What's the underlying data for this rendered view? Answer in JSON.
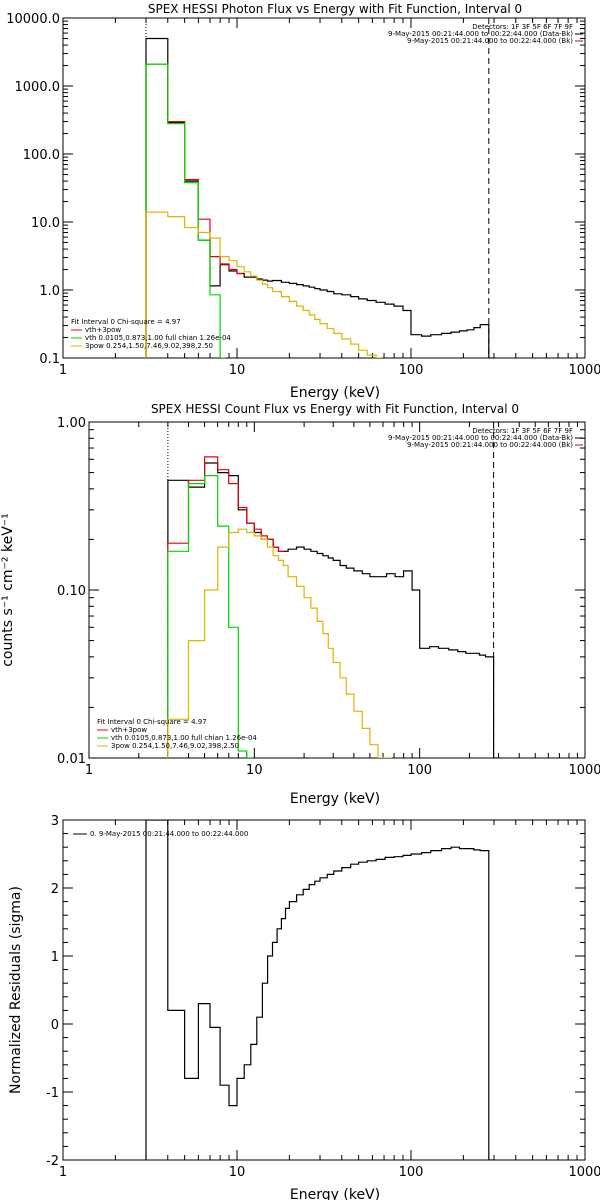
{
  "colors": {
    "data": "#000000",
    "total": "#e8000b",
    "thermal": "#00d800",
    "powerlaw": "#e0b400",
    "background": "#ffffff"
  },
  "chart_data": [
    {
      "type": "line",
      "title": "SPEX HESSI Photon Flux vs Energy with Fit Function, Interval 0",
      "xlabel": "Energy (keV)",
      "ylabel": "",
      "xscale": "log",
      "yscale": "log",
      "xlim": [
        1,
        1000
      ],
      "ylim": [
        0.1,
        10000
      ],
      "xticks": [
        "1",
        "10",
        "100",
        "1000"
      ],
      "yticks": [
        "0.1",
        "1.0",
        "10.0",
        "100.0",
        "1000.0",
        "10000.0"
      ],
      "vlines": {
        "dotted": 3,
        "dashed": 280
      },
      "legend_top_right": [
        "Detectors: 1F 3F 5F 6F 7F 9F",
        "9-May-2015 00:21:44.000 to 00:22:44.000 (Data-Bk)",
        "9-May-2015 00:21:44.000 to 00:22:44.000 (Bk)"
      ],
      "legend_bottom_left": [
        "Fit Interval 0   Chi-square = 4.97",
        "vth+3pow",
        "vth 0.0105,0.873,1.00  full chian 1.26e-04",
        "3pow 0.254,1.50,7.46,9.02,398,2.50"
      ],
      "series": [
        {
          "name": "9-May-2015 00:21:44.000 to 00:22:44.000 (Data-Bk)",
          "x": [
            3,
            4,
            5,
            6,
            7,
            8,
            9,
            10,
            11,
            12,
            13,
            14,
            15,
            16,
            18,
            20,
            22,
            24,
            26,
            28,
            30,
            33,
            36,
            40,
            45,
            50,
            56,
            63,
            71,
            80,
            90,
            100,
            115,
            130,
            150,
            170,
            190,
            210,
            230,
            250,
            280
          ],
          "y": [
            5000,
            290,
            40,
            5.4,
            1.15,
            2.4,
            1.9,
            1.75,
            1.55,
            1.55,
            1.45,
            1.4,
            1.35,
            1.38,
            1.3,
            1.25,
            1.2,
            1.15,
            1.1,
            1.05,
            1.0,
            0.95,
            0.88,
            0.85,
            0.8,
            0.74,
            0.7,
            0.66,
            0.62,
            0.58,
            0.5,
            0.22,
            0.21,
            0.22,
            0.23,
            0.24,
            0.25,
            0.26,
            0.28,
            0.31,
            0.1
          ]
        },
        {
          "name": "vth+3pow",
          "x": [
            3,
            4,
            5,
            6,
            7,
            8,
            9,
            10
          ],
          "y": [
            2100,
            300,
            42,
            11,
            3.1,
            2.35,
            2.0,
            1.75
          ]
        },
        {
          "name": "vth 0.0105,0.873,1.00  full chian 1.26e-04",
          "x": [
            3,
            4,
            5,
            6,
            7,
            8
          ],
          "y": [
            2100,
            280,
            38,
            5.4,
            0.85,
            0.1
          ]
        },
        {
          "name": "3pow 0.254,1.50,7.46,9.02,398,2.50",
          "x": [
            3,
            4,
            5,
            6,
            7,
            8,
            9,
            10,
            11,
            12,
            13,
            14,
            15,
            16,
            18,
            20,
            22,
            24,
            26,
            28,
            30,
            33,
            36,
            40,
            45,
            50,
            56,
            63
          ],
          "y": [
            14,
            12,
            8.3,
            7.0,
            5.8,
            3.1,
            2.7,
            2.2,
            1.85,
            1.6,
            1.4,
            1.22,
            1.08,
            0.95,
            0.8,
            0.68,
            0.58,
            0.5,
            0.43,
            0.37,
            0.32,
            0.27,
            0.23,
            0.19,
            0.16,
            0.13,
            0.11,
            0.1
          ]
        }
      ]
    },
    {
      "type": "line",
      "title": "SPEX HESSI Count Flux vs Energy with Fit Function, Interval 0",
      "xlabel": "Energy (keV)",
      "ylabel": "counts s⁻¹ cm⁻² keV⁻¹",
      "xscale": "log",
      "yscale": "log",
      "xlim": [
        1,
        1000
      ],
      "ylim": [
        0.01,
        1
      ],
      "xticks": [
        "1",
        "10",
        "100",
        "1000"
      ],
      "yticks": [
        "0.01",
        "0.10",
        "1.00"
      ],
      "vlines": {
        "dotted": 3,
        "dashed": 280
      },
      "legend_top_right": [
        "Detectors: 1F 3F 5F 6F 7F 9F",
        "9-May-2015 00:21:44.000 to 00:22:44.000 (Data-Bk)",
        "9-May-2015 00:21:44.000 to 00:22:44.000 (Bk)"
      ],
      "legend_bottom_left": [
        "Fit Interval 0   Chi-square = 4.97",
        "vth+3pow",
        "vth 0.0105,0.873,1.00  full chian 1.26e-04",
        "3pow 0.254,1.50,7.46,9.02,398,2.50"
      ],
      "series": [
        {
          "name": "9-May-2015 00:21:44.000 to 00:22:44.000 (Data-Bk)",
          "x": [
            3,
            4,
            5,
            6,
            7,
            8,
            9,
            10,
            11,
            12,
            13,
            14,
            15,
            16,
            18,
            20,
            22,
            24,
            26,
            28,
            30,
            33,
            36,
            40,
            45,
            50,
            56,
            63,
            71,
            80,
            90,
            100,
            115,
            130,
            150,
            170,
            190,
            210,
            230,
            250,
            280
          ],
          "y": [
            0.45,
            0.41,
            0.57,
            0.5,
            0.48,
            0.3,
            0.25,
            0.22,
            0.2,
            0.2,
            0.18,
            0.17,
            0.17,
            0.175,
            0.18,
            0.175,
            0.17,
            0.165,
            0.16,
            0.155,
            0.15,
            0.14,
            0.135,
            0.13,
            0.125,
            0.12,
            0.12,
            0.125,
            0.12,
            0.13,
            0.1,
            0.045,
            0.046,
            0.045,
            0.044,
            0.043,
            0.042,
            0.042,
            0.041,
            0.04,
            0.01
          ]
        },
        {
          "name": "vth+3pow",
          "x": [
            3,
            4,
            5,
            6,
            7,
            8,
            9,
            10,
            11,
            12,
            13,
            14
          ],
          "y": [
            0.19,
            0.45,
            0.62,
            0.52,
            0.43,
            0.31,
            0.25,
            0.23,
            0.21,
            0.2,
            0.18,
            0.17
          ]
        },
        {
          "name": "vth 0.0105,0.873,1.00  full chian 1.26e-04",
          "x": [
            3,
            4,
            5,
            6,
            7,
            8,
            9
          ],
          "y": [
            0.17,
            0.43,
            0.48,
            0.24,
            0.06,
            0.011,
            0.01
          ]
        },
        {
          "name": "3pow 0.254,1.50,7.46,9.02,398,2.50",
          "x": [
            3,
            4,
            5,
            6,
            7,
            8,
            9,
            10,
            11,
            12,
            13,
            14,
            15,
            16,
            18,
            20,
            22,
            24,
            26,
            28,
            30,
            33,
            36,
            40,
            45,
            50,
            56,
            63
          ],
          "y": [
            0.017,
            0.05,
            0.1,
            0.18,
            0.22,
            0.23,
            0.22,
            0.21,
            0.2,
            0.18,
            0.16,
            0.15,
            0.14,
            0.12,
            0.105,
            0.09,
            0.078,
            0.065,
            0.055,
            0.045,
            0.037,
            0.03,
            0.024,
            0.019,
            0.015,
            0.012,
            0.01,
            0.01
          ]
        }
      ]
    },
    {
      "type": "line",
      "title": "",
      "xlabel": "Energy (keV)",
      "ylabel": "Normalized Residuals (sigma)",
      "xscale": "log",
      "yscale": "linear",
      "xlim": [
        1,
        1000
      ],
      "ylim": [
        -2,
        3
      ],
      "xticks": [
        "1",
        "10",
        "100",
        "1000"
      ],
      "yticks": [
        "-2",
        "-1",
        "0",
        "1",
        "2",
        "3"
      ],
      "legend_top_left": [
        "0. 9-May-2015 00:21:44.000 to 00:22:44.000"
      ],
      "series": [
        {
          "name": "0. 9-May-2015 00:21:44.000 to 00:22:44.000",
          "x": [
            3,
            4,
            5,
            6,
            7,
            8,
            9,
            10,
            11,
            12,
            13,
            14,
            15,
            16,
            17,
            18,
            19,
            20,
            22,
            24,
            26,
            28,
            30,
            33,
            36,
            40,
            45,
            50,
            56,
            63,
            71,
            80,
            90,
            100,
            115,
            130,
            150,
            170,
            190,
            210,
            230,
            250,
            280
          ],
          "y": [
            3,
            0.2,
            -0.8,
            0.3,
            -0.05,
            -0.9,
            -1.2,
            -0.8,
            -0.6,
            -0.3,
            0.1,
            0.6,
            1.0,
            1.2,
            1.4,
            1.55,
            1.7,
            1.8,
            1.9,
            1.98,
            2.05,
            2.1,
            2.15,
            2.2,
            2.25,
            2.3,
            2.35,
            2.38,
            2.4,
            2.42,
            2.45,
            2.46,
            2.48,
            2.5,
            2.52,
            2.55,
            2.58,
            2.6,
            2.58,
            2.58,
            2.56,
            2.55,
            -2
          ]
        }
      ]
    }
  ]
}
